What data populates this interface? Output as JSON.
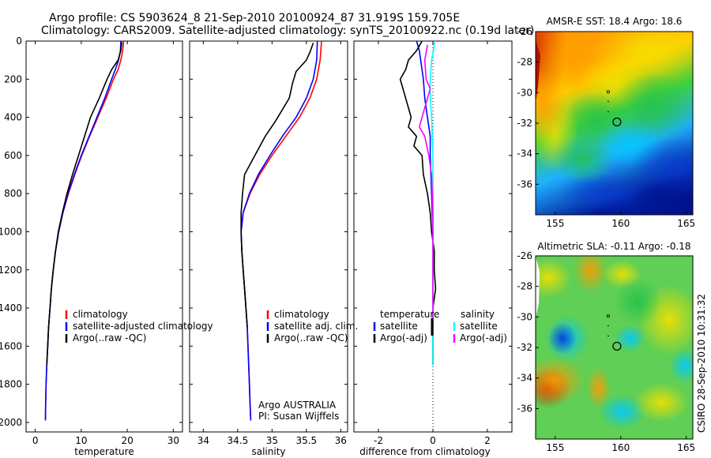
{
  "header": {
    "line1": "Argo profile: CS 5903624_8 21-Sep-2010 20100924_87 31.919S 159.705E",
    "line2": "Climatology: CARS2009. Satellite-adjusted climatology: synTS_20100922.nc (0.19d later)"
  },
  "colors": {
    "climatology": "#ff0000",
    "satellite": "#0000ff",
    "argo": "#000000",
    "diff_satellite": "#00ffff",
    "diff_argo": "#ff00ff"
  },
  "chart_data": [
    {
      "type": "line",
      "panel": "temperature",
      "xlabel": "temperature",
      "ylabel": "",
      "xlim": [
        -2,
        32
      ],
      "ylim": [
        2050,
        0
      ],
      "xticks": [
        "0",
        "10",
        "20",
        "30"
      ],
      "yticks": [
        "0",
        "200",
        "400",
        "600",
        "800",
        "1000",
        "1200",
        "1400",
        "1600",
        "1800",
        "2000"
      ],
      "legend": [
        "climatology",
        "satellite-adjusted climatology",
        "Argo(..raw -QC)"
      ],
      "series": [
        {
          "name": "climatology",
          "points": [
            [
              19.2,
              0
            ],
            [
              19.0,
              50
            ],
            [
              18.6,
              100
            ],
            [
              18.0,
              150
            ],
            [
              17.0,
              200
            ],
            [
              15.4,
              300
            ],
            [
              13.6,
              400
            ],
            [
              11.8,
              500
            ],
            [
              10.1,
              600
            ],
            [
              8.6,
              700
            ],
            [
              7.2,
              800
            ],
            [
              6.0,
              900
            ],
            [
              5.1,
              1000
            ],
            [
              4.4,
              1100
            ],
            [
              3.9,
              1200
            ],
            [
              3.5,
              1300
            ],
            [
              3.2,
              1400
            ],
            [
              2.9,
              1500
            ],
            [
              2.7,
              1600
            ],
            [
              2.5,
              1700
            ],
            [
              2.35,
              1800
            ],
            [
              2.25,
              1900
            ],
            [
              2.2,
              1980
            ]
          ]
        },
        {
          "name": "satellite-adjusted climatology",
          "points": [
            [
              18.6,
              0
            ],
            [
              18.5,
              50
            ],
            [
              18.1,
              100
            ],
            [
              17.4,
              150
            ],
            [
              16.6,
              200
            ],
            [
              15.1,
              300
            ],
            [
              13.4,
              400
            ],
            [
              11.7,
              500
            ],
            [
              10.0,
              600
            ],
            [
              8.5,
              700
            ],
            [
              7.1,
              800
            ],
            [
              6.0,
              900
            ],
            [
              5.1,
              1000
            ],
            [
              4.4,
              1100
            ],
            [
              3.9,
              1200
            ],
            [
              3.5,
              1300
            ],
            [
              3.2,
              1400
            ],
            [
              2.9,
              1500
            ],
            [
              2.7,
              1600
            ],
            [
              2.5,
              1700
            ],
            [
              2.35,
              1800
            ],
            [
              2.25,
              1900
            ],
            [
              2.2,
              1990
            ]
          ]
        },
        {
          "name": "Argo(..raw -QC)",
          "points": [
            [
              18.8,
              5
            ],
            [
              18.6,
              50
            ],
            [
              18.0,
              100
            ],
            [
              16.6,
              150
            ],
            [
              15.6,
              200
            ],
            [
              13.9,
              300
            ],
            [
              12.0,
              400
            ],
            [
              10.7,
              500
            ],
            [
              9.4,
              600
            ],
            [
              8.1,
              700
            ],
            [
              6.9,
              800
            ],
            [
              5.9,
              900
            ],
            [
              5.0,
              1000
            ],
            [
              4.4,
              1100
            ],
            [
              3.9,
              1200
            ],
            [
              3.5,
              1300
            ],
            [
              3.2,
              1400
            ],
            [
              2.9,
              1500
            ],
            [
              2.7,
              1600
            ],
            [
              2.5,
              1700
            ]
          ]
        }
      ]
    },
    {
      "type": "line",
      "panel": "salinity",
      "xlabel": "salinity",
      "xlim": [
        33.8,
        36.1
      ],
      "ylim": [
        2050,
        0
      ],
      "xticks": [
        "34",
        "34.5",
        "35",
        "35.5",
        "36"
      ],
      "legend": [
        "climatology",
        "satellite adj. clim.",
        "Argo(..raw -QC)"
      ],
      "annotations": [
        "Argo AUSTRALIA",
        "PI: Susan Wijffels"
      ],
      "series": [
        {
          "name": "climatology",
          "points": [
            [
              35.72,
              0
            ],
            [
              35.7,
              100
            ],
            [
              35.65,
              200
            ],
            [
              35.55,
              300
            ],
            [
              35.4,
              400
            ],
            [
              35.2,
              500
            ],
            [
              35.0,
              600
            ],
            [
              34.82,
              700
            ],
            [
              34.68,
              800
            ],
            [
              34.58,
              900
            ],
            [
              34.55,
              1000
            ],
            [
              34.56,
              1100
            ],
            [
              34.58,
              1200
            ],
            [
              34.6,
              1300
            ],
            [
              34.62,
              1400
            ],
            [
              34.64,
              1500
            ],
            [
              34.65,
              1600
            ],
            [
              34.66,
              1700
            ],
            [
              34.67,
              1800
            ],
            [
              34.68,
              1900
            ],
            [
              34.69,
              1990
            ]
          ]
        },
        {
          "name": "satellite adj. clim.",
          "points": [
            [
              35.66,
              0
            ],
            [
              35.65,
              100
            ],
            [
              35.6,
              200
            ],
            [
              35.5,
              300
            ],
            [
              35.35,
              400
            ],
            [
              35.15,
              500
            ],
            [
              34.97,
              600
            ],
            [
              34.8,
              700
            ],
            [
              34.67,
              800
            ],
            [
              34.58,
              900
            ],
            [
              34.55,
              1000
            ],
            [
              34.56,
              1100
            ],
            [
              34.58,
              1200
            ],
            [
              34.6,
              1300
            ],
            [
              34.62,
              1400
            ],
            [
              34.64,
              1500
            ],
            [
              34.65,
              1600
            ],
            [
              34.66,
              1700
            ],
            [
              34.67,
              1800
            ],
            [
              34.68,
              1900
            ],
            [
              34.69,
              1990
            ]
          ]
        },
        {
          "name": "Argo(..raw -QC)",
          "points": [
            [
              35.6,
              10
            ],
            [
              35.55,
              60
            ],
            [
              35.5,
              100
            ],
            [
              35.35,
              160
            ],
            [
              35.3,
              220
            ],
            [
              35.25,
              300
            ],
            [
              35.05,
              420
            ],
            [
              34.9,
              500
            ],
            [
              34.75,
              600
            ],
            [
              34.6,
              700
            ],
            [
              34.57,
              800
            ],
            [
              34.55,
              900
            ],
            [
              34.55,
              1000
            ],
            [
              34.56,
              1100
            ],
            [
              34.58,
              1200
            ],
            [
              34.6,
              1300
            ],
            [
              34.62,
              1400
            ],
            [
              34.64,
              1500
            ]
          ]
        }
      ]
    },
    {
      "type": "line",
      "panel": "difference",
      "xlabel": "difference from climatology",
      "xlim": [
        -2.9,
        2.9
      ],
      "ylim": [
        2050,
        0
      ],
      "xticks": [
        "-2",
        "0",
        "2"
      ],
      "legend_temperature": [
        "temperature",
        "satellite",
        "Argo(-adj)"
      ],
      "legend_salinity": [
        "salinity",
        "satellite",
        "Argo(-adj)"
      ],
      "series": [
        {
          "name": "temperature satellite",
          "points": [
            [
              -0.6,
              0
            ],
            [
              -0.5,
              50
            ],
            [
              -0.45,
              100
            ],
            [
              -0.4,
              150
            ],
            [
              -0.35,
              200
            ],
            [
              -0.3,
              300
            ],
            [
              -0.2,
              400
            ],
            [
              -0.1,
              500
            ],
            [
              -0.1,
              600
            ],
            [
              -0.05,
              800
            ],
            [
              0,
              1000
            ],
            [
              0,
              1400
            ]
          ]
        },
        {
          "name": "temperature Argo(-adj)",
          "points": [
            [
              -0.4,
              0
            ],
            [
              -0.6,
              50
            ],
            [
              -0.9,
              100
            ],
            [
              -1.0,
              150
            ],
            [
              -1.2,
              200
            ],
            [
              -1.1,
              250
            ],
            [
              -1.0,
              300
            ],
            [
              -0.9,
              350
            ],
            [
              -0.8,
              400
            ],
            [
              -0.9,
              450
            ],
            [
              -0.6,
              500
            ],
            [
              -0.7,
              550
            ],
            [
              -0.4,
              600
            ],
            [
              -0.35,
              700
            ],
            [
              -0.2,
              800
            ],
            [
              -0.1,
              900
            ],
            [
              -0.05,
              1000
            ],
            [
              0.05,
              1100
            ],
            [
              0.05,
              1200
            ],
            [
              0.1,
              1300
            ],
            [
              0,
              1400
            ],
            [
              0,
              1500
            ],
            [
              0,
              1600
            ],
            [
              0,
              1700
            ]
          ]
        },
        {
          "name": "salinity satellite",
          "points": [
            [
              0.06,
              0
            ],
            [
              0.02,
              50
            ],
            [
              -0.05,
              100
            ],
            [
              -0.1,
              200
            ],
            [
              -0.1,
              300
            ],
            [
              -0.05,
              400
            ],
            [
              0,
              600
            ],
            [
              0,
              1000
            ],
            [
              0,
              1400
            ],
            [
              0,
              1700
            ]
          ]
        },
        {
          "name": "salinity Argo(-adj)",
          "points": [
            [
              -0.2,
              20
            ],
            [
              -0.3,
              100
            ],
            [
              -0.25,
              200
            ],
            [
              -0.1,
              250
            ],
            [
              -0.2,
              300
            ],
            [
              -0.4,
              400
            ],
            [
              -0.5,
              450
            ],
            [
              -0.3,
              500
            ],
            [
              -0.15,
              600
            ],
            [
              -0.05,
              700
            ],
            [
              0,
              900
            ],
            [
              0,
              1300
            ],
            [
              0,
              1500
            ]
          ]
        }
      ]
    },
    {
      "type": "heatmap",
      "panel": "sst-map",
      "title": "AMSR-E SST: 18.4 Argo: 18.6",
      "xlim": [
        153.5,
        165.5
      ],
      "ylim": [
        -38,
        -26
      ],
      "xticks": [
        "155",
        "160",
        "165"
      ],
      "yticks": [
        "-26",
        "-28",
        "-30",
        "-32",
        "-34",
        "-36"
      ],
      "float_position": [
        159.705,
        -31.919
      ]
    },
    {
      "type": "heatmap",
      "panel": "sla-map",
      "title": "Altimetric SLA: -0.11 Argo: -0.18",
      "xlim": [
        153.5,
        165.5
      ],
      "ylim": [
        -38,
        -26
      ],
      "xticks": [
        "155",
        "160",
        "165"
      ],
      "yticks": [
        "-26",
        "-28",
        "-30",
        "-32",
        "-34",
        "-36"
      ],
      "float_position": [
        159.705,
        -31.919
      ]
    }
  ],
  "footer": {
    "stamp": "CSIRO 28-Sep-2010 10:31:32"
  }
}
